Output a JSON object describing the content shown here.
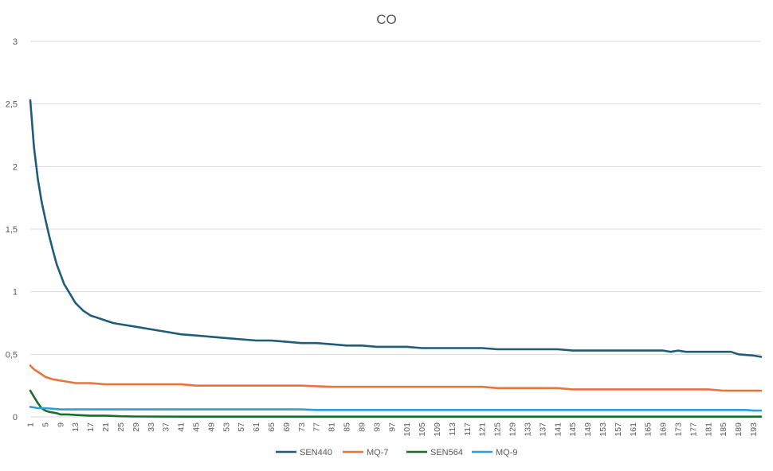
{
  "chart_data": {
    "type": "line",
    "title": "CO",
    "xlabel": "",
    "ylabel": "",
    "ylim": [
      0,
      3
    ],
    "yticks": [
      0,
      0.5,
      1,
      1.5,
      2,
      2.5,
      3
    ],
    "ytick_labels": [
      "0",
      "0,5",
      "1",
      "1,5",
      "2",
      "2,5",
      "3"
    ],
    "x_range": [
      1,
      195
    ],
    "xtick_labels": [
      "1",
      "5",
      "9",
      "13",
      "17",
      "21",
      "25",
      "29",
      "33",
      "37",
      "41",
      "45",
      "49",
      "53",
      "57",
      "61",
      "65",
      "69",
      "73",
      "77",
      "81",
      "85",
      "89",
      "93",
      "97",
      "101",
      "105",
      "109",
      "113",
      "117",
      "121",
      "125",
      "129",
      "133",
      "137",
      "141",
      "145",
      "149",
      "153",
      "157",
      "161",
      "165",
      "169",
      "173",
      "177",
      "181",
      "185",
      "189",
      "193"
    ],
    "grid": true,
    "legend": "bottom",
    "series": [
      {
        "name": "SEN440",
        "color": "#1f5c7a",
        "points": [
          [
            1,
            2.53
          ],
          [
            2,
            2.15
          ],
          [
            3,
            1.9
          ],
          [
            4,
            1.72
          ],
          [
            5,
            1.58
          ],
          [
            6,
            1.45
          ],
          [
            7,
            1.33
          ],
          [
            8,
            1.22
          ],
          [
            9,
            1.14
          ],
          [
            10,
            1.06
          ],
          [
            11,
            1.01
          ],
          [
            12,
            0.96
          ],
          [
            13,
            0.91
          ],
          [
            14,
            0.88
          ],
          [
            15,
            0.85
          ],
          [
            16,
            0.83
          ],
          [
            17,
            0.81
          ],
          [
            19,
            0.79
          ],
          [
            21,
            0.77
          ],
          [
            23,
            0.75
          ],
          [
            25,
            0.74
          ],
          [
            29,
            0.72
          ],
          [
            33,
            0.7
          ],
          [
            37,
            0.68
          ],
          [
            41,
            0.66
          ],
          [
            45,
            0.65
          ],
          [
            49,
            0.64
          ],
          [
            53,
            0.63
          ],
          [
            57,
            0.62
          ],
          [
            61,
            0.61
          ],
          [
            65,
            0.61
          ],
          [
            69,
            0.6
          ],
          [
            73,
            0.59
          ],
          [
            77,
            0.59
          ],
          [
            81,
            0.58
          ],
          [
            85,
            0.57
          ],
          [
            89,
            0.57
          ],
          [
            93,
            0.56
          ],
          [
            97,
            0.56
          ],
          [
            101,
            0.56
          ],
          [
            105,
            0.55
          ],
          [
            109,
            0.55
          ],
          [
            113,
            0.55
          ],
          [
            117,
            0.55
          ],
          [
            121,
            0.55
          ],
          [
            125,
            0.54
          ],
          [
            129,
            0.54
          ],
          [
            133,
            0.54
          ],
          [
            137,
            0.54
          ],
          [
            141,
            0.54
          ],
          [
            145,
            0.53
          ],
          [
            149,
            0.53
          ],
          [
            153,
            0.53
          ],
          [
            157,
            0.53
          ],
          [
            161,
            0.53
          ],
          [
            165,
            0.53
          ],
          [
            169,
            0.53
          ],
          [
            171,
            0.52
          ],
          [
            173,
            0.53
          ],
          [
            175,
            0.52
          ],
          [
            181,
            0.52
          ],
          [
            185,
            0.52
          ],
          [
            187,
            0.52
          ],
          [
            189,
            0.5
          ],
          [
            193,
            0.49
          ],
          [
            195,
            0.48
          ]
        ]
      },
      {
        "name": "MQ-7",
        "color": "#e8743b",
        "points": [
          [
            1,
            0.41
          ],
          [
            2,
            0.38
          ],
          [
            3,
            0.36
          ],
          [
            4,
            0.34
          ],
          [
            5,
            0.32
          ],
          [
            6,
            0.31
          ],
          [
            7,
            0.3
          ],
          [
            9,
            0.29
          ],
          [
            11,
            0.28
          ],
          [
            13,
            0.27
          ],
          [
            15,
            0.27
          ],
          [
            17,
            0.27
          ],
          [
            21,
            0.26
          ],
          [
            25,
            0.26
          ],
          [
            33,
            0.26
          ],
          [
            41,
            0.26
          ],
          [
            45,
            0.25
          ],
          [
            53,
            0.25
          ],
          [
            61,
            0.25
          ],
          [
            69,
            0.25
          ],
          [
            73,
            0.25
          ],
          [
            81,
            0.24
          ],
          [
            89,
            0.24
          ],
          [
            97,
            0.24
          ],
          [
            105,
            0.24
          ],
          [
            113,
            0.24
          ],
          [
            121,
            0.24
          ],
          [
            125,
            0.23
          ],
          [
            133,
            0.23
          ],
          [
            141,
            0.23
          ],
          [
            145,
            0.22
          ],
          [
            153,
            0.22
          ],
          [
            161,
            0.22
          ],
          [
            169,
            0.22
          ],
          [
            177,
            0.22
          ],
          [
            181,
            0.22
          ],
          [
            185,
            0.21
          ],
          [
            193,
            0.21
          ],
          [
            195,
            0.21
          ]
        ]
      },
      {
        "name": "SEN564",
        "color": "#1e6b2e",
        "points": [
          [
            1,
            0.21
          ],
          [
            2,
            0.16
          ],
          [
            3,
            0.11
          ],
          [
            4,
            0.07
          ],
          [
            5,
            0.05
          ],
          [
            6,
            0.04
          ],
          [
            7,
            0.035
          ],
          [
            8,
            0.03
          ],
          [
            9,
            0.02
          ],
          [
            11,
            0.02
          ],
          [
            13,
            0.015
          ],
          [
            17,
            0.01
          ],
          [
            21,
            0.01
          ],
          [
            25,
            0.005
          ],
          [
            29,
            0.003
          ],
          [
            41,
            0.002
          ],
          [
            61,
            0.002
          ],
          [
            101,
            0.002
          ],
          [
            141,
            0.002
          ],
          [
            181,
            0.002
          ],
          [
            195,
            0.002
          ]
        ]
      },
      {
        "name": "MQ-9",
        "color": "#2ca0d6",
        "points": [
          [
            1,
            0.08
          ],
          [
            3,
            0.07
          ],
          [
            5,
            0.07
          ],
          [
            9,
            0.06
          ],
          [
            13,
            0.06
          ],
          [
            25,
            0.06
          ],
          [
            41,
            0.06
          ],
          [
            61,
            0.06
          ],
          [
            73,
            0.06
          ],
          [
            77,
            0.055
          ],
          [
            81,
            0.055
          ],
          [
            101,
            0.055
          ],
          [
            121,
            0.055
          ],
          [
            141,
            0.055
          ],
          [
            161,
            0.055
          ],
          [
            181,
            0.055
          ],
          [
            191,
            0.055
          ],
          [
            193,
            0.05
          ],
          [
            195,
            0.05
          ]
        ]
      }
    ]
  }
}
